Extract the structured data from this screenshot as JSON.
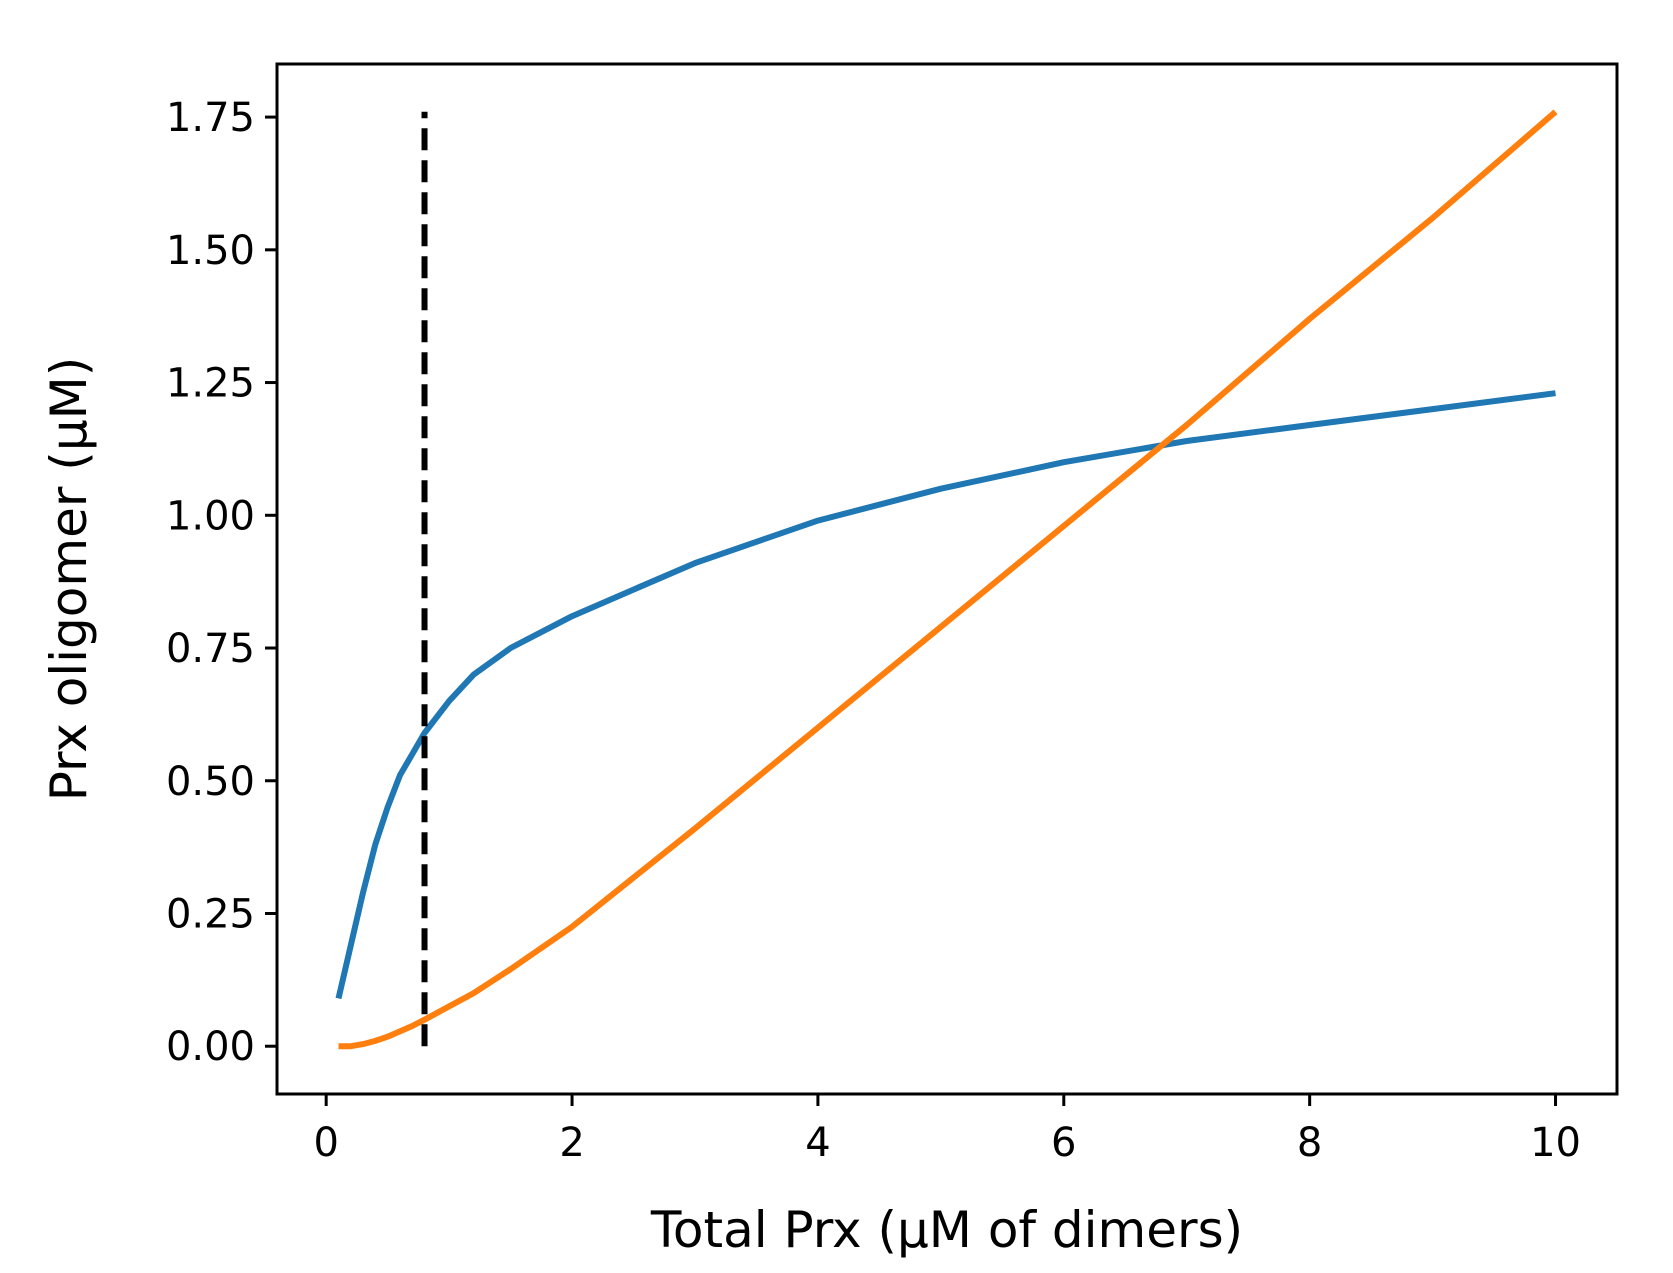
{
  "chart_data": {
    "type": "line",
    "title": "",
    "xlabel": "Total Prx (µM of dimers)",
    "ylabel": "Prx oligomer (µM)",
    "xlim": [
      -0.4,
      10.5
    ],
    "ylim": [
      -0.09,
      1.85
    ],
    "x_ticks": [
      0,
      2,
      4,
      6,
      8,
      10
    ],
    "x_tick_labels": [
      "0",
      "2",
      "4",
      "6",
      "8",
      "10"
    ],
    "y_ticks": [
      0.0,
      0.25,
      0.5,
      0.75,
      1.0,
      1.25,
      1.5,
      1.75
    ],
    "y_tick_labels": [
      "0.00",
      "0.25",
      "0.50",
      "0.75",
      "1.00",
      "1.25",
      "1.50",
      "1.75"
    ],
    "grid": false,
    "legend": "none",
    "series": [
      {
        "color": "#1f77b4",
        "x": [
          0.1,
          0.2,
          0.3,
          0.4,
          0.5,
          0.6,
          0.7,
          0.8,
          1.0,
          1.2,
          1.5,
          2.0,
          2.5,
          3.0,
          3.5,
          4.0,
          5.0,
          6.0,
          7.0,
          8.0,
          9.0,
          10.0
        ],
        "y": [
          0.09,
          0.19,
          0.29,
          0.38,
          0.45,
          0.51,
          0.55,
          0.59,
          0.65,
          0.7,
          0.75,
          0.81,
          0.86,
          0.91,
          0.95,
          0.99,
          1.05,
          1.1,
          1.14,
          1.17,
          1.2,
          1.23
        ]
      },
      {
        "color": "#ff7f0e",
        "x": [
          0.1,
          0.2,
          0.3,
          0.4,
          0.5,
          0.6,
          0.7,
          0.8,
          1.0,
          1.2,
          1.5,
          2.0,
          3.0,
          4.0,
          5.0,
          6.0,
          7.0,
          8.0,
          9.0,
          10.0
        ],
        "y": [
          0.0,
          0.0,
          0.004,
          0.01,
          0.018,
          0.028,
          0.038,
          0.05,
          0.075,
          0.1,
          0.145,
          0.225,
          0.41,
          0.6,
          0.79,
          0.98,
          1.17,
          1.37,
          1.56,
          1.76
        ]
      }
    ],
    "vline": {
      "x": 0.8,
      "y_range": [
        0.0,
        1.76
      ],
      "color": "#000000",
      "style": "dashed"
    }
  }
}
